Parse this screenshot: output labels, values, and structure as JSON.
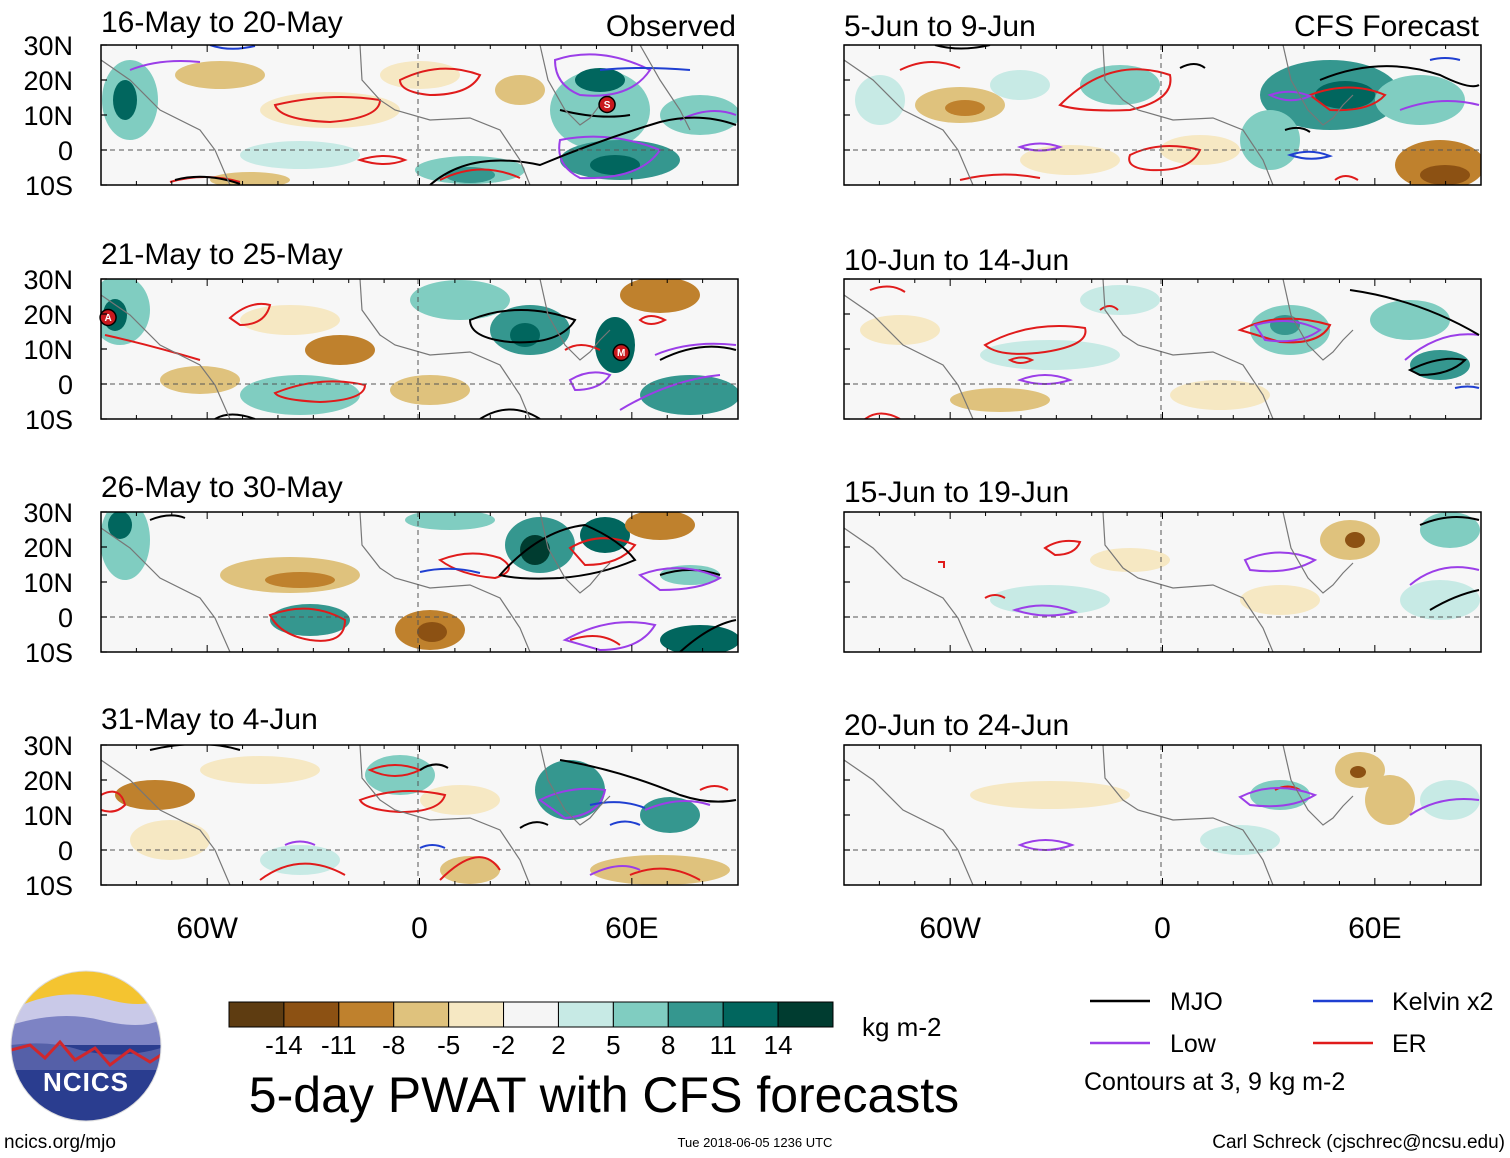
{
  "chart_data": {
    "type": "heatmap",
    "title": "5-day PWAT with CFS forecasts",
    "variable": "5-day precipitable water anomaly",
    "units": "kg m-2",
    "latitude_ticks": [
      "30N",
      "20N",
      "10N",
      "0",
      "10S"
    ],
    "longitude_ticks": [
      "60W",
      "0",
      "60E"
    ],
    "lat_range": [
      -10,
      30
    ],
    "lon_range": [
      -90,
      90
    ],
    "colorbar": {
      "ticks": [
        "-14",
        "-11",
        "-8",
        "-5",
        "-2",
        "2",
        "5",
        "8",
        "11",
        "14"
      ],
      "colors": [
        "#5e3c11",
        "#8c5113",
        "#bf812d",
        "#dfc27d",
        "#f6e8c3",
        "#f5f5f5",
        "#c7eae5",
        "#80cdc1",
        "#35978f",
        "#01665e",
        "#003c30"
      ]
    },
    "columns": [
      {
        "label": "Observed",
        "panels": [
          {
            "period": "16-May to 20-May"
          },
          {
            "period": "21-May to 25-May"
          },
          {
            "period": "26-May to 30-May"
          },
          {
            "period": "31-May to 4-Jun"
          }
        ]
      },
      {
        "label": "CFS Forecast",
        "panels": [
          {
            "period": "5-Jun to 9-Jun"
          },
          {
            "period": "10-Jun to 14-Jun"
          },
          {
            "period": "15-Jun to 19-Jun"
          },
          {
            "period": "20-Jun to 24-Jun"
          }
        ]
      }
    ],
    "storm_markers": [
      {
        "panel": "16-May to 20-May",
        "label": "S",
        "lon": 53,
        "lat": 13
      },
      {
        "panel": "21-May to 25-May",
        "label": "A",
        "lon": -88,
        "lat": 19
      },
      {
        "panel": "21-May to 25-May",
        "label": "M",
        "lon": 57,
        "lat": 9
      }
    ],
    "legend": {
      "items": [
        {
          "label": "MJO",
          "color": "#000000"
        },
        {
          "label": "Kelvin x2",
          "color": "#1f3fd1"
        },
        {
          "label": "Low",
          "color": "#9b3ee8"
        },
        {
          "label": "ER",
          "color": "#e01b1b"
        }
      ],
      "note": "Contours at 3, 9 kg m-2"
    }
  },
  "logo": {
    "text": "NCICS"
  },
  "footer": {
    "left": "ncics.org/mjo",
    "center": "Tue 2018-06-05 1236 UTC",
    "right": "Carl Schreck (cjschrec@ncsu.edu)"
  }
}
